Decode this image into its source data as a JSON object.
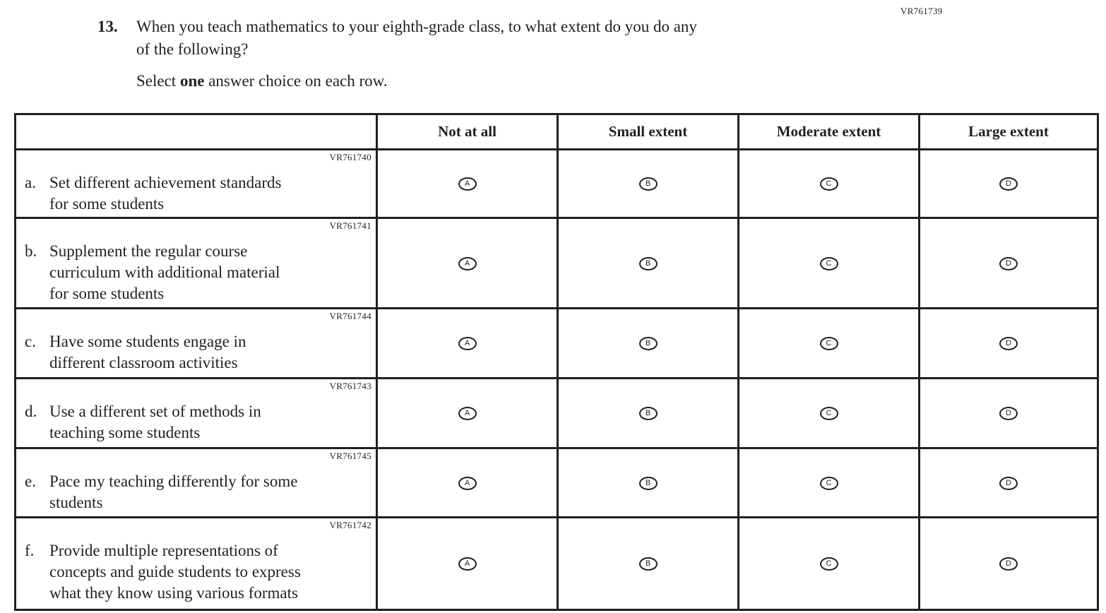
{
  "page": {
    "form_code": "VR761739",
    "question_number": "13.",
    "question_text": "When you teach mathematics to your eighth-grade class, to what extent do you do any\nof the following?",
    "instruction_prefix": "Select ",
    "instruction_bold": "one",
    "instruction_suffix": " answer choice on each row."
  },
  "table": {
    "columns": [
      "Not at all",
      "Small extent",
      "Moderate extent",
      "Large extent"
    ],
    "option_letters": [
      "A",
      "B",
      "C",
      "D"
    ],
    "rows": [
      {
        "letter": "a.",
        "code": "VR761740",
        "lines": [
          "Set different achievement standards",
          "for some students"
        ]
      },
      {
        "letter": "b.",
        "code": "VR761741",
        "lines": [
          "Supplement the regular course",
          "curriculum with additional material",
          "for some students"
        ]
      },
      {
        "letter": "c.",
        "code": "VR761744",
        "lines": [
          "Have some students engage in",
          "different classroom activities"
        ]
      },
      {
        "letter": "d.",
        "code": "VR761743",
        "lines": [
          "Use a different set of methods in",
          "teaching some students"
        ]
      },
      {
        "letter": "e.",
        "code": "VR761745",
        "lines": [
          "Pace my teaching differently for some",
          "students"
        ]
      },
      {
        "letter": "f.",
        "code": "VR761742",
        "lines": [
          "Provide multiple representations of",
          "concepts and guide students to express",
          "what they know using various formats"
        ]
      }
    ]
  },
  "colors": {
    "text": "#231f20",
    "border": "#231f20",
    "background": "#ffffff"
  }
}
